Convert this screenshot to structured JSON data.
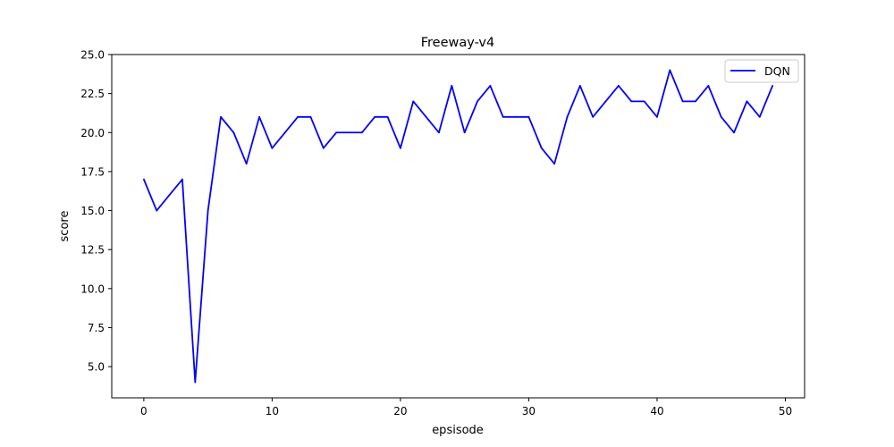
{
  "chart_data": {
    "type": "line",
    "title": "Freeway-v4",
    "xlabel": "epsisode",
    "ylabel": "score",
    "xlim": [
      -2.5,
      51.5
    ],
    "ylim": [
      3.0,
      25.0
    ],
    "xticks": [
      0,
      10,
      20,
      30,
      40,
      50
    ],
    "xtick_labels": [
      "0",
      "10",
      "20",
      "30",
      "40",
      "50"
    ],
    "yticks": [
      5.0,
      7.5,
      10.0,
      12.5,
      15.0,
      17.5,
      20.0,
      22.5,
      25.0
    ],
    "ytick_labels": [
      "5.0",
      "7.5",
      "10.0",
      "12.5",
      "15.0",
      "17.5",
      "20.0",
      "22.5",
      "25.0"
    ],
    "grid": false,
    "legend_position": "top-right",
    "series": [
      {
        "name": "DQN",
        "color": "#0000ff",
        "x": [
          0,
          1,
          2,
          3,
          4,
          5,
          6,
          7,
          8,
          9,
          10,
          11,
          12,
          13,
          14,
          15,
          16,
          17,
          18,
          19,
          20,
          21,
          22,
          23,
          24,
          25,
          26,
          27,
          28,
          29,
          30,
          31,
          32,
          33,
          34,
          35,
          36,
          37,
          38,
          39,
          40,
          41,
          42,
          43,
          44,
          45,
          46,
          47,
          48,
          49
        ],
        "values": [
          17,
          15,
          16,
          17,
          4,
          15,
          21,
          20,
          18,
          21,
          19,
          20,
          21,
          21,
          19,
          20,
          20,
          20,
          21,
          21,
          19,
          22,
          21,
          20,
          23,
          20,
          22,
          23,
          21,
          21,
          21,
          19,
          18,
          21,
          23,
          21,
          22,
          23,
          22,
          22,
          21,
          24,
          22,
          22,
          23,
          21,
          20,
          22,
          21,
          23
        ]
      }
    ]
  }
}
